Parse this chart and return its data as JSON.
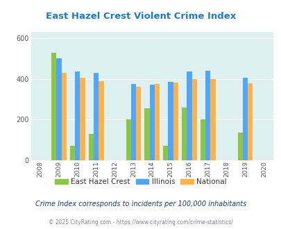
{
  "title": "East Hazel Crest Violent Crime Index",
  "years": [
    2009,
    2010,
    2011,
    2013,
    2014,
    2015,
    2016,
    2017,
    2019
  ],
  "east_hazel_crest": [
    530,
    70,
    130,
    200,
    255,
    70,
    260,
    200,
    135
  ],
  "illinois": [
    500,
    435,
    430,
    375,
    370,
    385,
    435,
    440,
    405
  ],
  "national": [
    430,
    405,
    390,
    363,
    375,
    383,
    400,
    398,
    380
  ],
  "bar_width": 0.27,
  "xlim": [
    2007.5,
    2020.5
  ],
  "ylim": [
    0,
    630
  ],
  "yticks": [
    0,
    200,
    400,
    600
  ],
  "xticks": [
    2008,
    2009,
    2010,
    2011,
    2012,
    2013,
    2014,
    2015,
    2016,
    2017,
    2018,
    2019,
    2020
  ],
  "color_ehc": "#8dc63f",
  "color_il": "#4da6ff",
  "color_nat": "#ffb347",
  "bg_color": "#dff0f0",
  "title_color": "#1a7acc",
  "subtitle_color": "#1a3a6a",
  "footer_color": "#888888",
  "subtitle": "Crime Index corresponds to incidents per 100,000 inhabitants",
  "footer": "© 2025 CityRating.com - https://www.cityrating.com/crime-statistics/",
  "legend_labels": [
    "East Hazel Crest",
    "Illinois",
    "National"
  ]
}
